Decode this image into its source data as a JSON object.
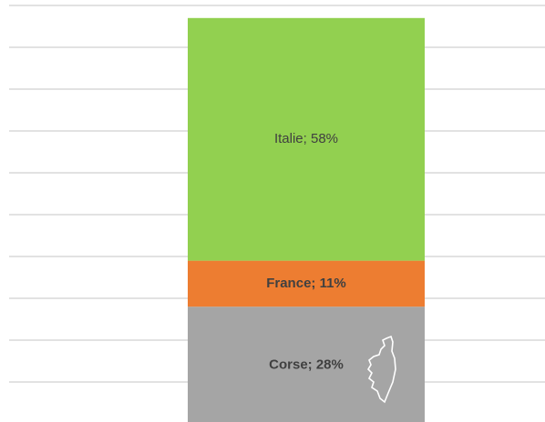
{
  "chart_data": {
    "type": "stacked_bar",
    "categories": [
      null
    ],
    "series": [
      {
        "name": "Corse",
        "color": "#a5a5a5",
        "values": [
          28
        ],
        "value_labels": [
          "Corse; 28%"
        ]
      },
      {
        "name": "France",
        "color": "#ed7d31",
        "values": [
          11
        ],
        "value_labels": [
          "France; 11%"
        ]
      },
      {
        "name": "Italie",
        "color": "#92d050",
        "values": [
          58
        ],
        "value_labels": [
          "Italie; 58%"
        ]
      }
    ],
    "ylim": [
      0,
      100
    ],
    "yticks": [
      0,
      10,
      20,
      30,
      40,
      50,
      60,
      70,
      80,
      90,
      100
    ],
    "grid": true
  }
}
